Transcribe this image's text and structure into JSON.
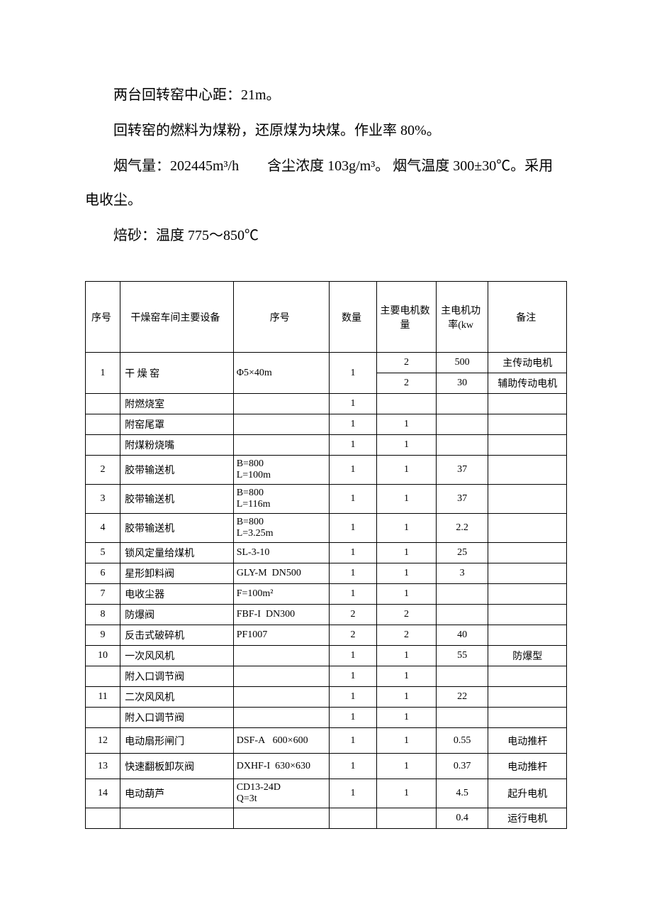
{
  "paragraphs": {
    "p1": "两台回转窑中心距：21m。",
    "p2": "回转窑的燃料为煤粉，还原煤为块煤。作业率 80%。",
    "p3": "烟气量：202445m³/h　　含尘浓度 103g/m³。 烟气温度 300±30℃。采用电收尘。",
    "p4": "焙砂：温度 775～850℃"
  },
  "table": {
    "headers": {
      "seq": "序号",
      "equip": "干燥窑车间主要设备",
      "spec": "序号",
      "qty": "数量",
      "motorqty": "主要电机数量",
      "power": "主电机功率(kw",
      "remark": "备注"
    },
    "rows": [
      {
        "seq": "1",
        "equip": "干 燥 窑",
        "spec": "Φ5×40m",
        "qty": "1",
        "motorqty": "2",
        "power": "500",
        "remark": "主传动电机",
        "rowspan": 2
      },
      {
        "motorqty": "2",
        "power": "30",
        "remark": "辅助传动电机",
        "subrow": true
      },
      {
        "seq": "",
        "equip": "附燃烧室",
        "spec": "",
        "qty": "1",
        "motorqty": "",
        "power": "",
        "remark": ""
      },
      {
        "seq": "",
        "equip": "附窑尾罩",
        "spec": "",
        "qty": "1",
        "motorqty": "1",
        "power": "",
        "remark": ""
      },
      {
        "seq": "",
        "equip": "附煤粉烧嘴",
        "spec": "",
        "qty": "1",
        "motorqty": "1",
        "power": "",
        "remark": ""
      },
      {
        "seq": "2",
        "equip": "胶带输送机",
        "spec": "B=800\nL=100m",
        "qty": "1",
        "motorqty": "1",
        "power": "37",
        "remark": "",
        "multiline": true
      },
      {
        "seq": "3",
        "equip": "胶带输送机",
        "spec": "B=800\nL=116m",
        "qty": "1",
        "motorqty": "1",
        "power": "37",
        "remark": "",
        "multiline": true
      },
      {
        "seq": "4",
        "equip": "胶带输送机",
        "spec": "B=800\nL=3.25m",
        "qty": "1",
        "motorqty": "1",
        "power": "2.2",
        "remark": "",
        "multiline": true
      },
      {
        "seq": "5",
        "equip": "锁风定量给煤机",
        "spec": "SL-3-10",
        "qty": "1",
        "motorqty": "1",
        "power": "25",
        "remark": ""
      },
      {
        "seq": "6",
        "equip": "星形卸料阀",
        "spec": "GLY-M  DN500",
        "qty": "1",
        "motorqty": "1",
        "power": "3",
        "remark": ""
      },
      {
        "seq": "7",
        "equip": "电收尘器",
        "spec": "F=100m²",
        "qty": "1",
        "motorqty": "1",
        "power": "",
        "remark": ""
      },
      {
        "seq": "8",
        "equip": "防爆阀",
        "spec": "FBF-I  DN300",
        "qty": "2",
        "motorqty": "2",
        "power": "",
        "remark": ""
      },
      {
        "seq": "9",
        "equip": "反击式破碎机",
        "spec": "PF1007",
        "qty": "2",
        "motorqty": "2",
        "power": "40",
        "remark": ""
      },
      {
        "seq": "10",
        "equip": "一次风风机",
        "spec": "",
        "qty": "1",
        "motorqty": "1",
        "power": "55",
        "remark": "防爆型"
      },
      {
        "seq": "",
        "equip": "附入口调节阀",
        "spec": "",
        "qty": "1",
        "motorqty": "1",
        "power": "",
        "remark": ""
      },
      {
        "seq": "11",
        "equip": "二次风风机",
        "spec": "",
        "qty": "1",
        "motorqty": "1",
        "power": "22",
        "remark": ""
      },
      {
        "seq": "",
        "equip": "附入口调节阀",
        "spec": "",
        "qty": "1",
        "motorqty": "1",
        "power": "",
        "remark": ""
      },
      {
        "seq": "12",
        "equip": "电动扇形闸门",
        "spec": "DSF-A   600×600",
        "qty": "1",
        "motorqty": "1",
        "power": "0.55",
        "remark": "电动推杆",
        "multiline": true
      },
      {
        "seq": "13",
        "equip": "快速翻板卸灰阀",
        "spec": "DXHF-I  630×630",
        "qty": "1",
        "motorqty": "1",
        "power": "0.37",
        "remark": "电动推杆",
        "multiline": true
      },
      {
        "seq": "14",
        "equip": "电动葫芦",
        "spec": "CD13-24D\nQ=3t",
        "qty": "1",
        "motorqty": "1",
        "power": "4.5",
        "remark": "起升电机",
        "multiline": true
      },
      {
        "seq": "",
        "equip": "",
        "spec": "",
        "qty": "",
        "motorqty": "",
        "power": "0.4",
        "remark": "运行电机"
      }
    ]
  },
  "styles": {
    "body_font_size": 20,
    "table_font_size": 14,
    "text_color": "#000000",
    "background_color": "#ffffff",
    "border_color": "#000000"
  }
}
